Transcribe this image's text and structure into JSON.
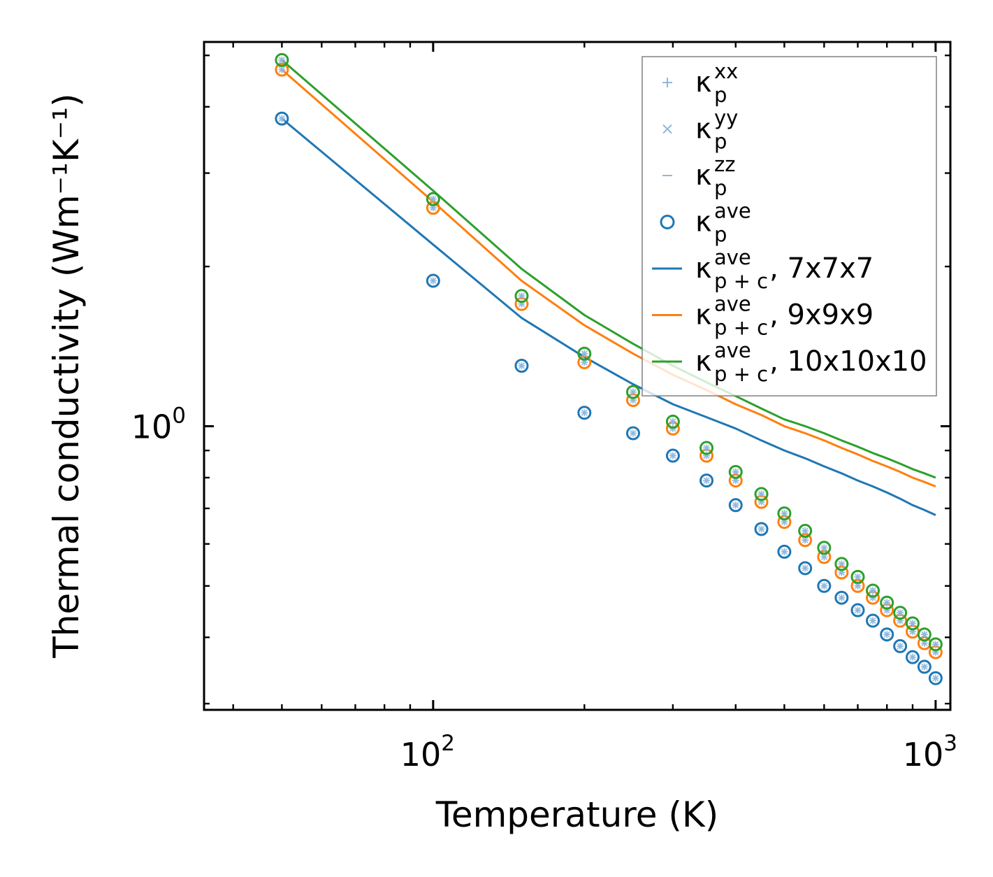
{
  "chart_data": {
    "type": "line",
    "title": "",
    "xlabel": "Temperature (K)",
    "ylabel": "Thermal conductivity (Wm⁻¹K⁻¹)",
    "xscale": "log",
    "yscale": "log",
    "xlim": [
      35,
      1070
    ],
    "ylim": [
      0.292,
      5.3
    ],
    "x_ticks": [
      {
        "value": 100,
        "base": "10",
        "exp": "2"
      },
      {
        "value": 1000,
        "base": "10",
        "exp": "3"
      }
    ],
    "y_ticks": [
      {
        "value": 1,
        "base": "10",
        "exp": "0"
      }
    ],
    "legend_position": "upper right",
    "colors": {
      "c1": "#1f77b4",
      "c2": "#ff7f0e",
      "c3": "#2ca02c",
      "tensor": "#8fb8dc",
      "axis": "#000000"
    },
    "legend": [
      {
        "id": "kxx",
        "kind": "plus",
        "color": "#8fb8dc",
        "label": "κ",
        "sup": "xx",
        "sub": "p",
        "suffix": ""
      },
      {
        "id": "kyy",
        "kind": "cross",
        "color": "#8fb8dc",
        "label": "κ",
        "sup": "yy",
        "sub": "p",
        "suffix": ""
      },
      {
        "id": "kzz",
        "kind": "dash",
        "color": "#8fb8dc",
        "label": "κ",
        "sup": "zz",
        "sub": "p",
        "suffix": ""
      },
      {
        "id": "kave",
        "kind": "circle",
        "color": "#1f77b4",
        "label": "κ",
        "sup": "ave",
        "sub": "p",
        "suffix": ""
      },
      {
        "id": "l7",
        "kind": "line",
        "color": "#1f77b4",
        "label": "κ",
        "sup": "ave",
        "sub": "p + c",
        "suffix": ", 7x7x7"
      },
      {
        "id": "l9",
        "kind": "line",
        "color": "#ff7f0e",
        "label": "κ",
        "sup": "ave",
        "sub": "p + c",
        "suffix": ", 9x9x9"
      },
      {
        "id": "l10",
        "kind": "line",
        "color": "#2ca02c",
        "label": "κ",
        "sup": "ave",
        "sub": "p + c",
        "suffix": ", 10x10x10"
      }
    ],
    "x": [
      50,
      100,
      150,
      200,
      250,
      300,
      350,
      400,
      450,
      500,
      550,
      600,
      650,
      700,
      750,
      800,
      850,
      900,
      950,
      1000
    ],
    "series": [
      {
        "name": "κp^ave, 7x7x7",
        "color": "#1f77b4",
        "points": [
          3.8,
          1.88,
          1.3,
          1.06,
          0.97,
          0.88,
          0.79,
          0.71,
          0.64,
          0.58,
          0.54,
          0.5,
          0.475,
          0.45,
          0.43,
          0.405,
          0.385,
          0.367,
          0.352,
          0.335
        ],
        "line": [
          3.8,
          2.2,
          1.6,
          1.35,
          1.2,
          1.1,
          1.04,
          0.99,
          0.94,
          0.9,
          0.87,
          0.84,
          0.815,
          0.79,
          0.77,
          0.75,
          0.73,
          0.71,
          0.695,
          0.68
        ]
      },
      {
        "name": "κp^ave, 9x9x9",
        "color": "#ff7f0e",
        "points": [
          4.7,
          2.58,
          1.7,
          1.32,
          1.12,
          0.99,
          0.88,
          0.79,
          0.72,
          0.66,
          0.61,
          0.567,
          0.53,
          0.5,
          0.475,
          0.45,
          0.43,
          0.41,
          0.39,
          0.375
        ],
        "line": [
          4.7,
          2.65,
          1.88,
          1.55,
          1.37,
          1.25,
          1.17,
          1.1,
          1.05,
          1.0,
          0.97,
          0.94,
          0.91,
          0.885,
          0.86,
          0.84,
          0.82,
          0.8,
          0.785,
          0.77
        ]
      },
      {
        "name": "κp^ave, 10x10x10",
        "color": "#2ca02c",
        "points": [
          4.9,
          2.68,
          1.76,
          1.37,
          1.16,
          1.02,
          0.91,
          0.82,
          0.745,
          0.685,
          0.635,
          0.59,
          0.55,
          0.52,
          0.49,
          0.465,
          0.445,
          0.425,
          0.405,
          0.388
        ],
        "line": [
          4.9,
          2.78,
          1.98,
          1.62,
          1.43,
          1.3,
          1.21,
          1.14,
          1.08,
          1.03,
          1.0,
          0.97,
          0.94,
          0.915,
          0.89,
          0.87,
          0.85,
          0.83,
          0.815,
          0.8
        ]
      }
    ]
  }
}
